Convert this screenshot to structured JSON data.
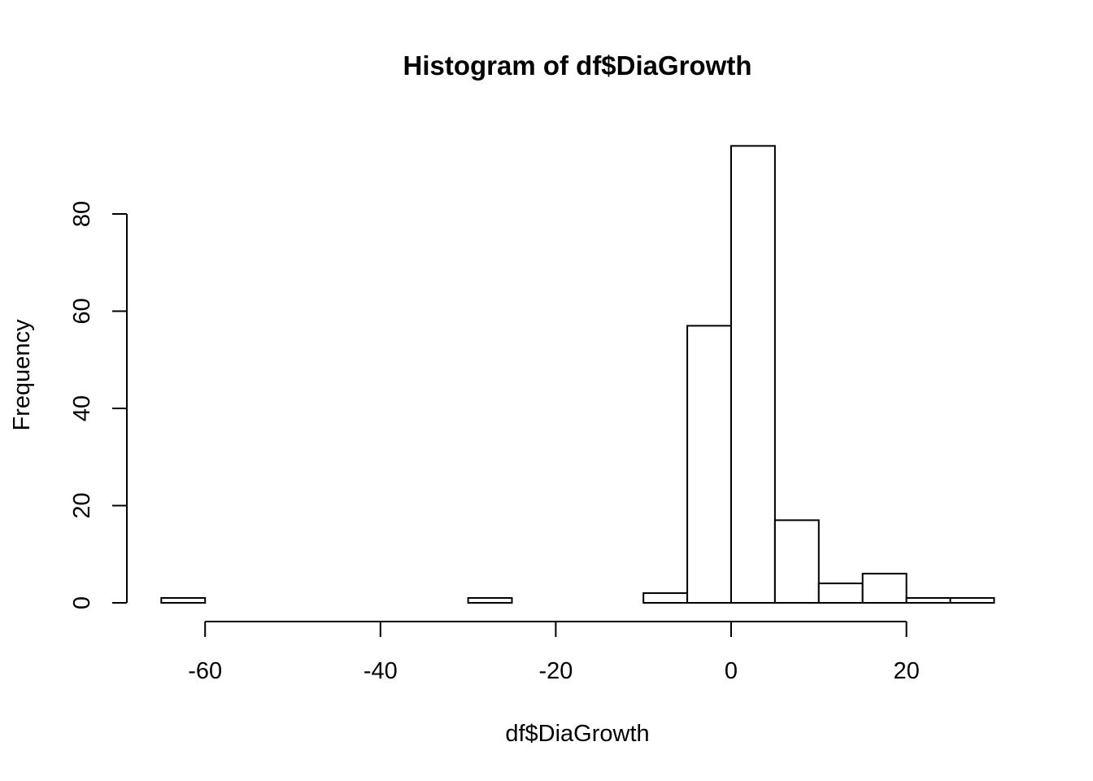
{
  "chart_data": {
    "type": "bar",
    "title": "Histogram of df$DiaGrowth",
    "xlabel": "df$DiaGrowth",
    "ylabel": "Frequency",
    "bin_width": 5,
    "bins": [
      {
        "x0": -65,
        "x1": -60,
        "count": 1
      },
      {
        "x0": -60,
        "x1": -55,
        "count": 0
      },
      {
        "x0": -55,
        "x1": -50,
        "count": 0
      },
      {
        "x0": -50,
        "x1": -45,
        "count": 0
      },
      {
        "x0": -45,
        "x1": -40,
        "count": 0
      },
      {
        "x0": -40,
        "x1": -35,
        "count": 0
      },
      {
        "x0": -35,
        "x1": -30,
        "count": 0
      },
      {
        "x0": -30,
        "x1": -25,
        "count": 1
      },
      {
        "x0": -25,
        "x1": -20,
        "count": 0
      },
      {
        "x0": -20,
        "x1": -15,
        "count": 0
      },
      {
        "x0": -15,
        "x1": -10,
        "count": 0
      },
      {
        "x0": -10,
        "x1": -5,
        "count": 2
      },
      {
        "x0": -5,
        "x1": 0,
        "count": 57
      },
      {
        "x0": 0,
        "x1": 5,
        "count": 94
      },
      {
        "x0": 5,
        "x1": 10,
        "count": 17
      },
      {
        "x0": 10,
        "x1": 15,
        "count": 4
      },
      {
        "x0": 15,
        "x1": 20,
        "count": 6
      },
      {
        "x0": 20,
        "x1": 25,
        "count": 1
      },
      {
        "x0": 25,
        "x1": 30,
        "count": 1
      }
    ],
    "x_ticks": [
      -60,
      -40,
      -20,
      0,
      20
    ],
    "x_tick_labels": [
      "-60",
      "-40",
      "-20",
      "0",
      "20"
    ],
    "y_ticks": [
      0,
      20,
      40,
      60,
      80
    ],
    "y_tick_labels": [
      "0",
      "20",
      "40",
      "60",
      "80"
    ],
    "xlim": [
      -65,
      30
    ],
    "ylim": [
      0,
      94
    ],
    "grid": false,
    "legend": "none"
  }
}
